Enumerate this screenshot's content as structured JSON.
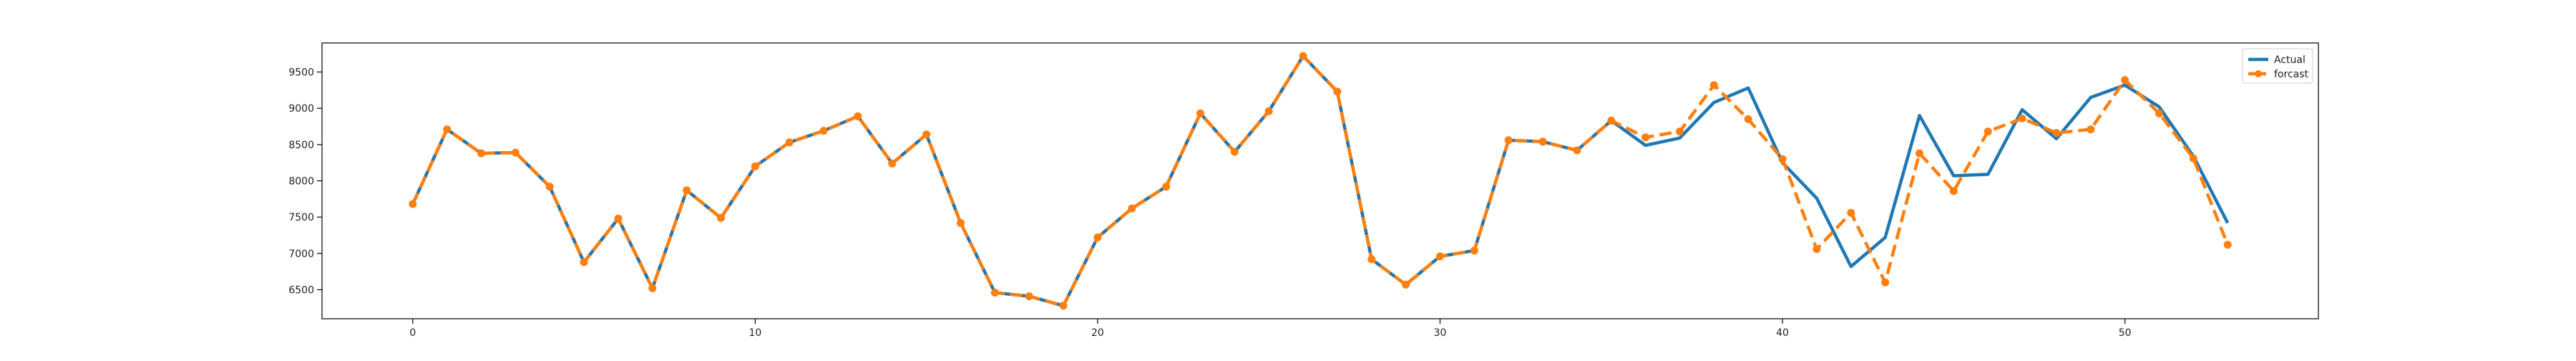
{
  "chart_data": {
    "type": "line",
    "title": "",
    "xlabel": "",
    "ylabel": "",
    "xlim": [
      -2.65,
      55.65
    ],
    "ylim": [
      6100,
      9900
    ],
    "x_ticks": [
      0,
      10,
      20,
      30,
      40,
      50
    ],
    "y_ticks": [
      6500,
      7000,
      7500,
      8000,
      8500,
      9000,
      9500
    ],
    "grid": false,
    "legend_position": "top-right",
    "x": [
      0,
      1,
      2,
      3,
      4,
      5,
      6,
      7,
      8,
      9,
      10,
      11,
      12,
      13,
      14,
      15,
      16,
      17,
      18,
      19,
      20,
      21,
      22,
      23,
      24,
      25,
      26,
      27,
      28,
      29,
      30,
      31,
      32,
      33,
      34,
      35,
      36,
      37,
      38,
      39,
      40,
      41,
      42,
      43,
      44,
      45,
      46,
      47,
      48,
      49,
      50,
      51,
      52,
      53
    ],
    "series": [
      {
        "name": "Actual",
        "color": "#1f77b4",
        "style": "solid",
        "marker": "none",
        "values": [
          7680,
          8710,
          8380,
          8390,
          7920,
          6880,
          7480,
          6520,
          7870,
          7490,
          8200,
          8530,
          8690,
          8890,
          8240,
          8640,
          7420,
          6460,
          6410,
          6280,
          7220,
          7620,
          7920,
          8930,
          8400,
          8960,
          9720,
          9230,
          6920,
          6570,
          6960,
          7040,
          8560,
          8540,
          8420,
          8830,
          8490,
          8590,
          9080,
          9280,
          8250,
          7760,
          6820,
          7220,
          8900,
          8070,
          8090,
          8980,
          8580,
          9150,
          9320,
          9020,
          8340,
          7420
        ]
      },
      {
        "name": "forcast",
        "color": "#ff7f0e",
        "style": "dashed",
        "marker": "circle",
        "values": [
          7680,
          8710,
          8380,
          8390,
          7920,
          6880,
          7480,
          6520,
          7870,
          7490,
          8200,
          8530,
          8690,
          8890,
          8240,
          8640,
          7420,
          6460,
          6410,
          6280,
          7220,
          7620,
          7920,
          8930,
          8400,
          8960,
          9720,
          9230,
          6920,
          6570,
          6960,
          7040,
          8560,
          8540,
          8420,
          8830,
          8600,
          8680,
          9320,
          8850,
          8300,
          7060,
          7560,
          6600,
          8380,
          7860,
          8680,
          8860,
          8660,
          8710,
          9390,
          8930,
          8310,
          7120
        ]
      }
    ]
  }
}
